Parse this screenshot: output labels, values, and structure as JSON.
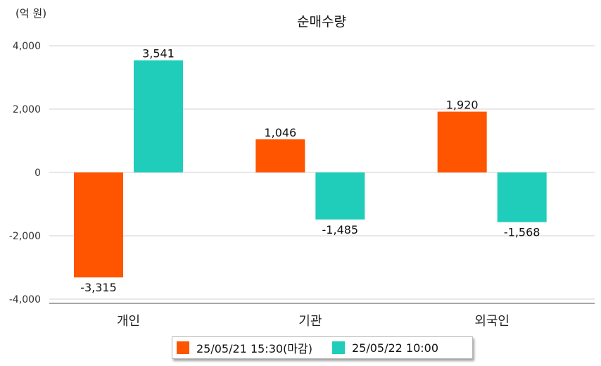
{
  "chart_data": {
    "type": "bar",
    "title": "순매수량",
    "unit_label": "(억 원)",
    "categories": [
      "개인",
      "기관",
      "외국인"
    ],
    "series": [
      {
        "name": "25/05/21 15:30(마감)",
        "color": "#ff5500",
        "values": [
          -3315,
          1046,
          1920
        ]
      },
      {
        "name": "25/05/22 10:00",
        "color": "#1fcdba",
        "values": [
          3541,
          -1485,
          -1568
        ]
      }
    ],
    "data_labels": [
      [
        "-3,315",
        "1,046",
        "1,920"
      ],
      [
        "3,541",
        "-1,485",
        "-1,568"
      ]
    ],
    "ylim": [
      -4000,
      4000
    ],
    "yticks": [
      4000,
      2000,
      0,
      -2000,
      -4000
    ],
    "ytick_labels": [
      "4,000",
      "2,000",
      "0",
      "-2,000",
      "-4,000"
    ],
    "grid": true,
    "legend_position": "bottom-center"
  }
}
